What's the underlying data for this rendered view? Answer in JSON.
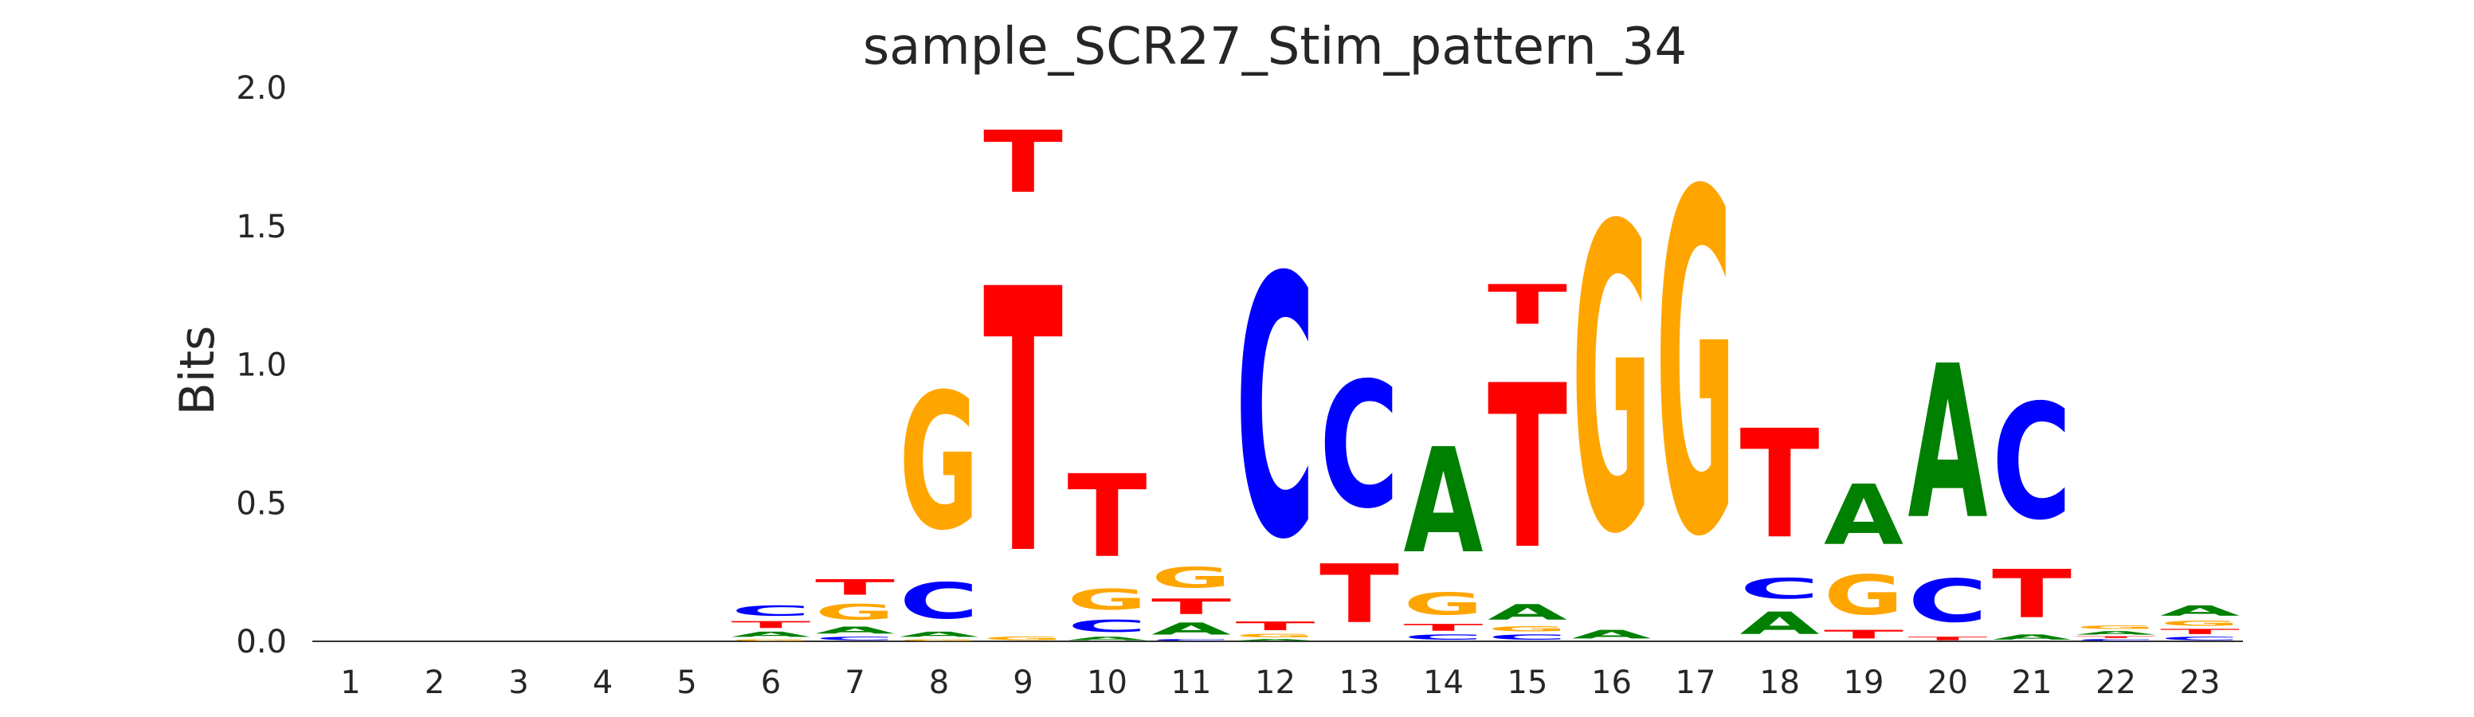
{
  "chart_data": {
    "type": "sequence_logo",
    "title": "sample_SCR27_Stim_pattern_34",
    "ylabel": "Bits",
    "xlabel": "",
    "ylim": [
      0,
      2.0
    ],
    "y_ticks": [
      "0.0",
      "0.5",
      "1.0",
      "1.5",
      "2.0"
    ],
    "y_tick_values": [
      0,
      0.5,
      1.0,
      1.5,
      2.0
    ],
    "grid": false,
    "legend": "none",
    "colors": {
      "A": "#008000",
      "C": "#0000ff",
      "G": "#ffa500",
      "T": "#ff0000"
    },
    "positions": [
      {
        "label": "1",
        "letters": []
      },
      {
        "label": "2",
        "letters": []
      },
      {
        "label": "3",
        "letters": []
      },
      {
        "label": "4",
        "letters": []
      },
      {
        "label": "5",
        "letters": []
      },
      {
        "label": "6",
        "letters": [
          [
            "G",
            0.01
          ],
          [
            "A",
            0.03
          ],
          [
            "T",
            0.04
          ],
          [
            "C",
            0.06
          ]
        ]
      },
      {
        "label": "7",
        "letters": [
          [
            "C",
            0.02
          ],
          [
            "A",
            0.04
          ],
          [
            "G",
            0.09
          ],
          [
            "T",
            0.09
          ]
        ]
      },
      {
        "label": "8",
        "letters": [
          [
            "G",
            0.01
          ],
          [
            "A",
            0.03
          ],
          [
            "C",
            0.21
          ],
          [
            "G",
            0.79
          ]
        ]
      },
      {
        "label": "9",
        "letters": [
          [
            "G",
            0.02
          ],
          [
            "T",
            1.53
          ],
          [
            "T",
            0.36
          ]
        ]
      },
      {
        "label": "10",
        "letters": [
          [
            "A",
            0.02
          ],
          [
            "C",
            0.07
          ],
          [
            "G",
            0.12
          ],
          [
            "T",
            0.48
          ]
        ]
      },
      {
        "label": "11",
        "letters": [
          [
            "C",
            0.01
          ],
          [
            "A",
            0.07
          ],
          [
            "T",
            0.09
          ],
          [
            "G",
            0.12
          ]
        ]
      },
      {
        "label": "12",
        "letters": [
          [
            "A",
            0.01
          ],
          [
            "G",
            0.02
          ],
          [
            "T",
            0.05
          ],
          [
            "C",
            1.51
          ]
        ]
      },
      {
        "label": "13",
        "letters": [
          [
            "T",
            0.34
          ],
          [
            "C",
            0.73
          ]
        ]
      },
      {
        "label": "14",
        "letters": [
          [
            "C",
            0.03
          ],
          [
            "T",
            0.04
          ],
          [
            "G",
            0.13
          ],
          [
            "A",
            0.61
          ]
        ]
      },
      {
        "label": "15",
        "letters": [
          [
            "C",
            0.03
          ],
          [
            "G",
            0.03
          ],
          [
            "A",
            0.09
          ],
          [
            "T",
            0.95
          ],
          [
            "T",
            0.23
          ]
        ]
      },
      {
        "label": "16",
        "letters": [
          [
            "A",
            0.05
          ],
          [
            "G",
            1.77
          ]
        ]
      },
      {
        "label": "17",
        "letters": [
          [
            "G",
            1.98
          ]
        ]
      },
      {
        "label": "18",
        "letters": [
          [
            "A",
            0.13
          ],
          [
            "C",
            0.12
          ],
          [
            "T",
            0.63
          ]
        ]
      },
      {
        "label": "19",
        "letters": [
          [
            "T",
            0.05
          ],
          [
            "G",
            0.23
          ],
          [
            "A",
            0.35
          ]
        ]
      },
      {
        "label": "20",
        "letters": [
          [
            "T",
            0.02
          ],
          [
            "C",
            0.25
          ],
          [
            "A",
            0.89
          ]
        ]
      },
      {
        "label": "21",
        "letters": [
          [
            "A",
            0.03
          ],
          [
            "T",
            0.28
          ],
          [
            "C",
            0.67
          ]
        ]
      },
      {
        "label": "22",
        "letters": [
          [
            "C",
            0.01
          ],
          [
            "T",
            0.01
          ],
          [
            "A",
            0.02
          ],
          [
            "G",
            0.02
          ]
        ]
      },
      {
        "label": "23",
        "letters": [
          [
            "C",
            0.02
          ],
          [
            "T",
            0.03
          ],
          [
            "G",
            0.03
          ],
          [
            "A",
            0.06
          ]
        ]
      }
    ]
  }
}
